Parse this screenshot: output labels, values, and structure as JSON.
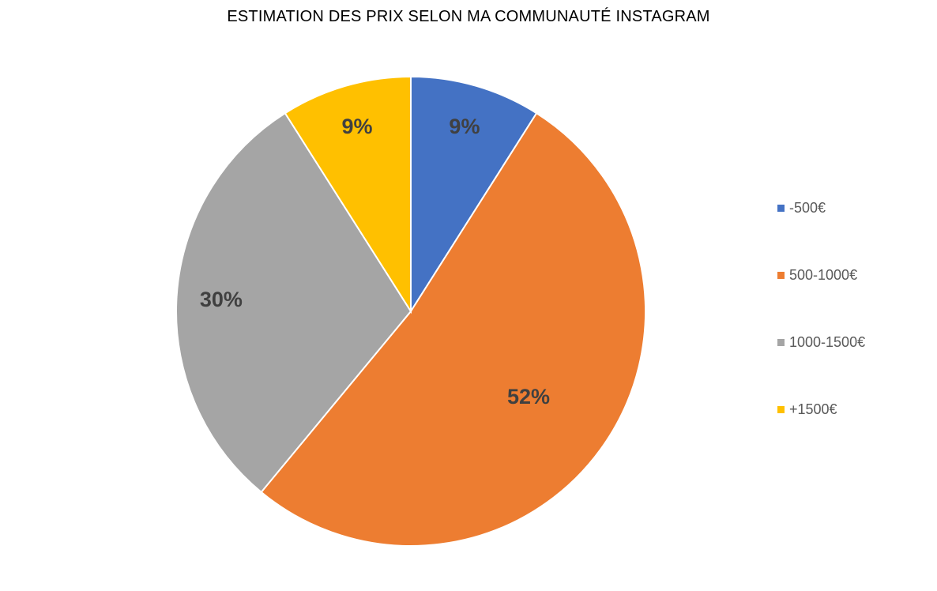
{
  "chart_data": {
    "type": "pie",
    "title": "ESTIMATION DES PRIX SELON MA COMMUNAUTÉ INSTAGRAM",
    "legend_position": "right",
    "start_angle": "12 o'clock, clockwise",
    "slices": [
      {
        "label": "-500€",
        "value": 9,
        "display": "9%",
        "color": "#4472C4"
      },
      {
        "label": "500-1000€",
        "value": 52,
        "display": "52%",
        "color": "#ED7D31"
      },
      {
        "label": "1000-1500€",
        "value": 30,
        "display": "30%",
        "color": "#A5A5A5"
      },
      {
        "label": "+1500€",
        "value": 9,
        "display": "9%",
        "color": "#FFC000"
      }
    ]
  }
}
